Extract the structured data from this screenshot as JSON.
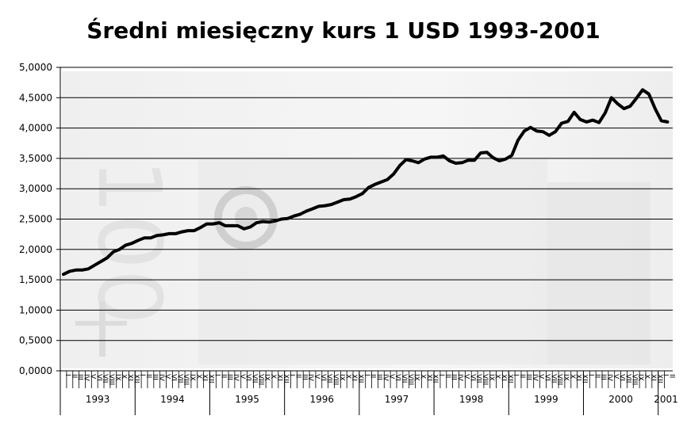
{
  "chart_data": {
    "type": "line",
    "title": "Średni miesięczny kurs 1 USD 1993-2001",
    "xlabel": "",
    "ylabel": "",
    "ylim": [
      0,
      5
    ],
    "y_ticks": [
      "0,0000",
      "0,5000",
      "1,0000",
      "1,5000",
      "2,0000",
      "2,5000",
      "3,0000",
      "3,5000",
      "4,0000",
      "4,5000",
      "5,0000"
    ],
    "grid": true,
    "legend": "none",
    "month_labels": [
      "I",
      "II",
      "III",
      "IV",
      "V",
      "VI",
      "VII",
      "VIII",
      "IX",
      "X",
      "XI",
      "XII"
    ],
    "years": [
      "1993",
      "1994",
      "1995",
      "1996",
      "1997",
      "1998",
      "1999",
      "2000",
      "2001"
    ],
    "series": [
      {
        "values": [
          1.59,
          1.64,
          1.66,
          1.66,
          1.68,
          1.74,
          1.8,
          1.86,
          1.96,
          2.0,
          2.07,
          2.1,
          2.15,
          2.19,
          2.19,
          2.23,
          2.24,
          2.26,
          2.26,
          2.29,
          2.31,
          2.31,
          2.36,
          2.42,
          2.42,
          2.44,
          2.39,
          2.39,
          2.39,
          2.34,
          2.37,
          2.44,
          2.46,
          2.45,
          2.47,
          2.5,
          2.51,
          2.55,
          2.58,
          2.63,
          2.67,
          2.71,
          2.72,
          2.74,
          2.78,
          2.82,
          2.83,
          2.87,
          2.92,
          3.02,
          3.07,
          3.11,
          3.15,
          3.24,
          3.38,
          3.48,
          3.46,
          3.43,
          3.49,
          3.52,
          3.52,
          3.54,
          3.46,
          3.42,
          3.43,
          3.47,
          3.47,
          3.59,
          3.6,
          3.51,
          3.46,
          3.49,
          3.55,
          3.8,
          3.95,
          4.01,
          3.95,
          3.94,
          3.88,
          3.94,
          4.08,
          4.11,
          4.26,
          4.14,
          4.1,
          4.13,
          4.09,
          4.25,
          4.5,
          4.4,
          4.32,
          4.36,
          4.49,
          4.63,
          4.56,
          4.32,
          4.12,
          4.1
        ]
      }
    ]
  }
}
